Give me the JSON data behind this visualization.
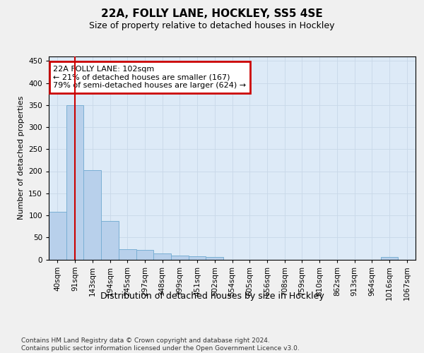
{
  "title1": "22A, FOLLY LANE, HOCKLEY, SS5 4SE",
  "title2": "Size of property relative to detached houses in Hockley",
  "xlabel": "Distribution of detached houses by size in Hockley",
  "ylabel": "Number of detached properties",
  "categories": [
    "40sqm",
    "91sqm",
    "143sqm",
    "194sqm",
    "245sqm",
    "297sqm",
    "348sqm",
    "399sqm",
    "451sqm",
    "502sqm",
    "554sqm",
    "605sqm",
    "656sqm",
    "708sqm",
    "759sqm",
    "810sqm",
    "862sqm",
    "913sqm",
    "964sqm",
    "1016sqm",
    "1067sqm"
  ],
  "values": [
    108,
    349,
    203,
    88,
    24,
    22,
    14,
    9,
    7,
    5,
    0,
    0,
    0,
    0,
    0,
    0,
    0,
    0,
    0,
    5,
    0
  ],
  "bar_color": "#b8d0eb",
  "bar_edge_color": "#7aafd4",
  "grid_color": "#c8d8e8",
  "bg_color": "#ddeaf7",
  "fig_bg_color": "#f0f0f0",
  "vline_color": "#cc0000",
  "vline_x": 1.0,
  "annotation_text": "22A FOLLY LANE: 102sqm\n← 21% of detached houses are smaller (167)\n79% of semi-detached houses are larger (624) →",
  "annotation_box_facecolor": "#ffffff",
  "annotation_box_edgecolor": "#cc0000",
  "footer_text": "Contains HM Land Registry data © Crown copyright and database right 2024.\nContains public sector information licensed under the Open Government Licence v3.0.",
  "yticks": [
    0,
    50,
    100,
    150,
    200,
    250,
    300,
    350,
    400,
    450
  ],
  "ylim": [
    0,
    460
  ],
  "title1_fontsize": 11,
  "title2_fontsize": 9,
  "ylabel_fontsize": 8,
  "xlabel_fontsize": 9,
  "tick_fontsize": 7.5,
  "annot_fontsize": 8,
  "footer_fontsize": 6.5
}
